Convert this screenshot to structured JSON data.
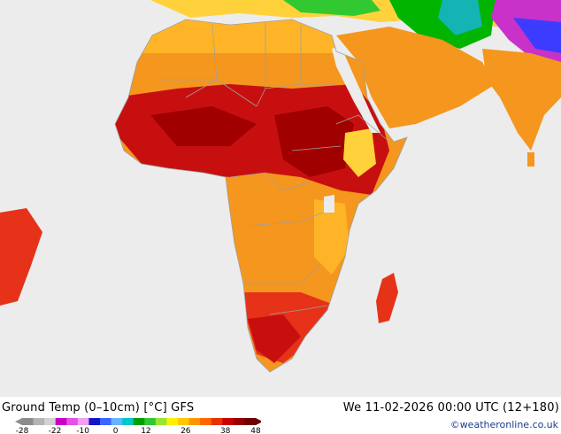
{
  "header": {
    "title": "Ground Temp (0–10cm) [°C] GFS",
    "run": "We 11-02-2026 00:00 UTC (12+180)"
  },
  "credit": "©weatheronline.co.uk",
  "legend": {
    "ticks": [
      "-28",
      "-22",
      "-10",
      "0",
      "12",
      "26",
      "38",
      "48"
    ],
    "colors": [
      "#8c8c8c",
      "#b4b4b4",
      "#d2d2d2",
      "#c800c8",
      "#e650e6",
      "#f0a0f0",
      "#1414c8",
      "#3c64ff",
      "#64b4ff",
      "#00c8c8",
      "#00a000",
      "#32c832",
      "#96e632",
      "#fff000",
      "#ffc800",
      "#ff9600",
      "#ff6400",
      "#e63200",
      "#c80000",
      "#960000",
      "#6e0000"
    ]
  },
  "map": {
    "region": "Africa",
    "colors": {
      "ocean": "#ececec",
      "warm": "#ffb428",
      "orange": "#f5961e",
      "hot": "#e63219",
      "veryhot": "#c80f0f",
      "extreme": "#a00000",
      "cool": "#ffd23c",
      "green": "#32c832",
      "teal": "#14b4b4",
      "purple": "#c832c8",
      "blue": "#3c3cff",
      "border": "#a0a0a0"
    }
  }
}
